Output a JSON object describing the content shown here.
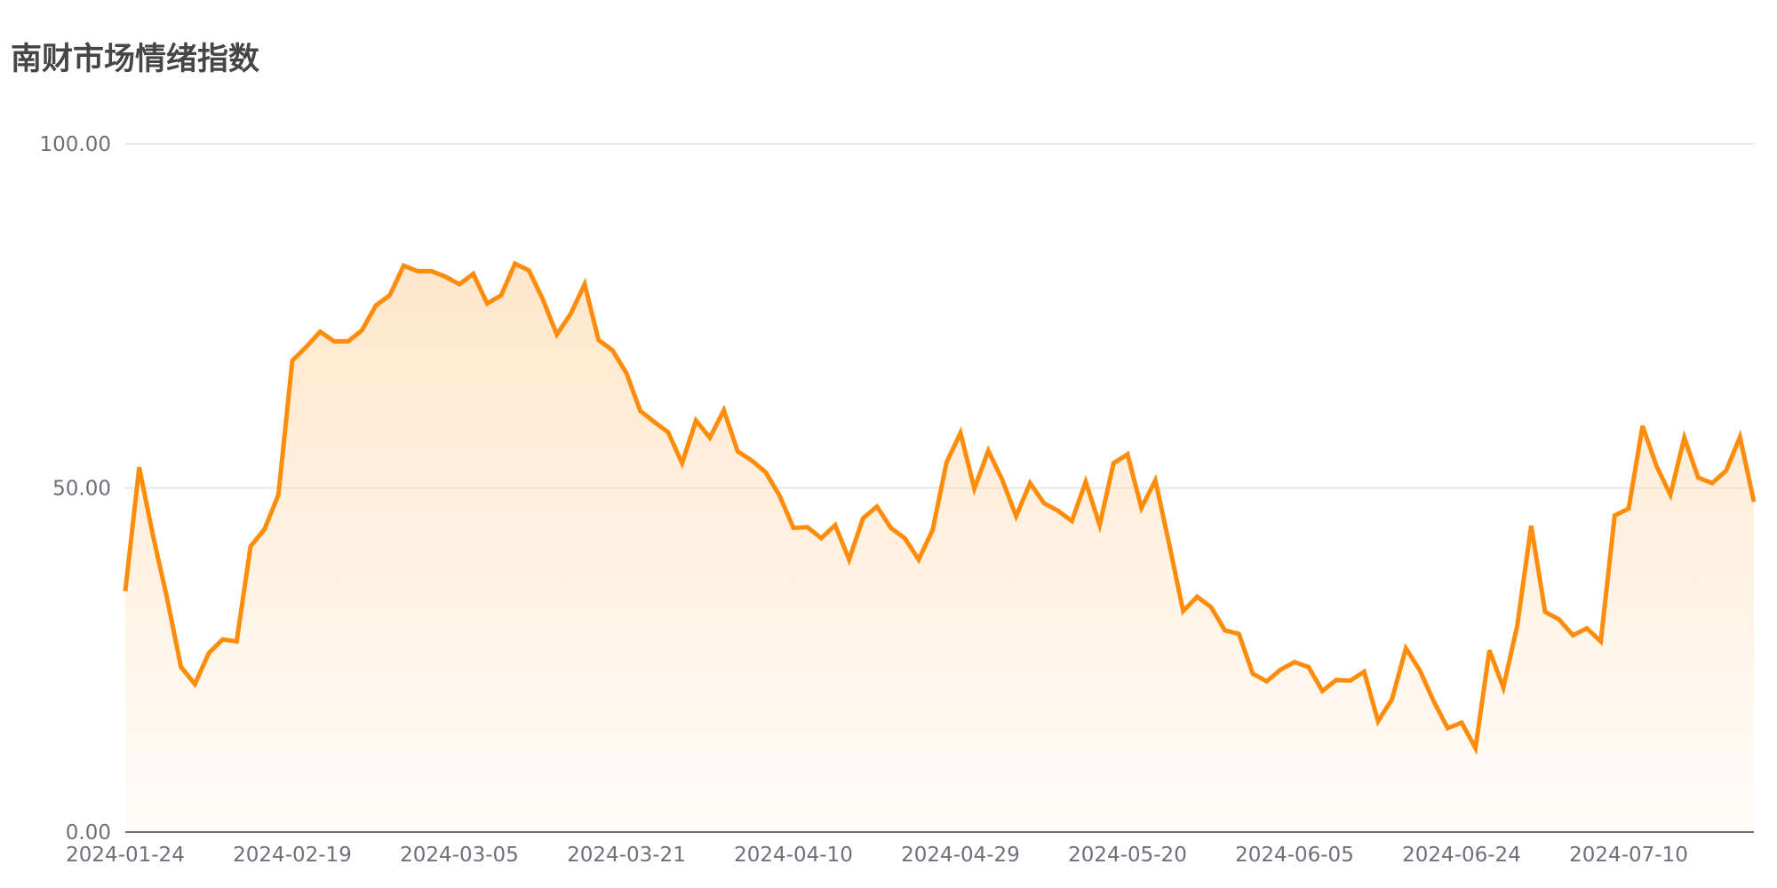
{
  "chart_data": {
    "type": "area",
    "title": "南财市场情绪指数",
    "xlabel": "",
    "ylabel": "",
    "ylim": [
      0,
      100
    ],
    "y_ticks": [
      "0.00",
      "50.00",
      "100.00"
    ],
    "x_ticks": [
      "2024-01-24",
      "2024-02-19",
      "2024-03-05",
      "2024-03-21",
      "2024-04-10",
      "2024-04-29",
      "2024-05-20",
      "2024-06-05",
      "2024-06-24",
      "2024-07-10"
    ],
    "x_tick_positions": [
      0,
      12,
      24,
      36,
      48,
      60,
      72,
      84,
      96,
      108
    ],
    "grid": true,
    "legend": "none",
    "line_color": "#ff8c0a",
    "fill_color": "#ffdcb4",
    "series": [
      {
        "values": [
          35,
          53,
          43,
          34,
          24,
          21.5,
          26,
          28,
          27.7,
          41.5,
          44,
          49,
          68.5,
          70.5,
          72.7,
          71.3,
          71.3,
          72.9,
          76.5,
          78,
          82.3,
          81.5,
          81.5,
          80.7,
          79.6,
          81.1,
          76.8,
          78,
          82.6,
          81.6,
          77.4,
          72.3,
          75.3,
          79.6,
          71.5,
          70,
          66.7,
          61.2,
          59.6,
          58.1,
          53.6,
          59.8,
          57.3,
          61.3,
          55.3,
          54,
          52.3,
          48.9,
          44.2,
          44.3,
          42.7,
          44.6,
          39.6,
          45.6,
          47.3,
          44.2,
          42.7,
          39.6,
          43.9,
          53.7,
          58,
          49.9,
          55.4,
          51.2,
          45.9,
          50.7,
          47.8,
          46.7,
          45.2,
          50.9,
          44.6,
          53.6,
          54.9,
          47.1,
          51.1,
          41.8,
          32.1,
          34.2,
          32.7,
          29.3,
          28.8,
          23,
          21.9,
          23.6,
          24.7,
          24,
          20.5,
          22.1,
          22,
          23.3,
          16.1,
          19.3,
          26.7,
          23.5,
          19,
          15.1,
          15.9,
          12.2,
          26.4,
          21,
          30,
          44.5,
          32,
          30.9,
          28.6,
          29.6,
          27.7,
          46,
          47,
          59,
          53.2,
          49,
          57.3,
          51.5,
          50.7,
          52.5,
          57.4,
          48
        ]
      }
    ]
  }
}
